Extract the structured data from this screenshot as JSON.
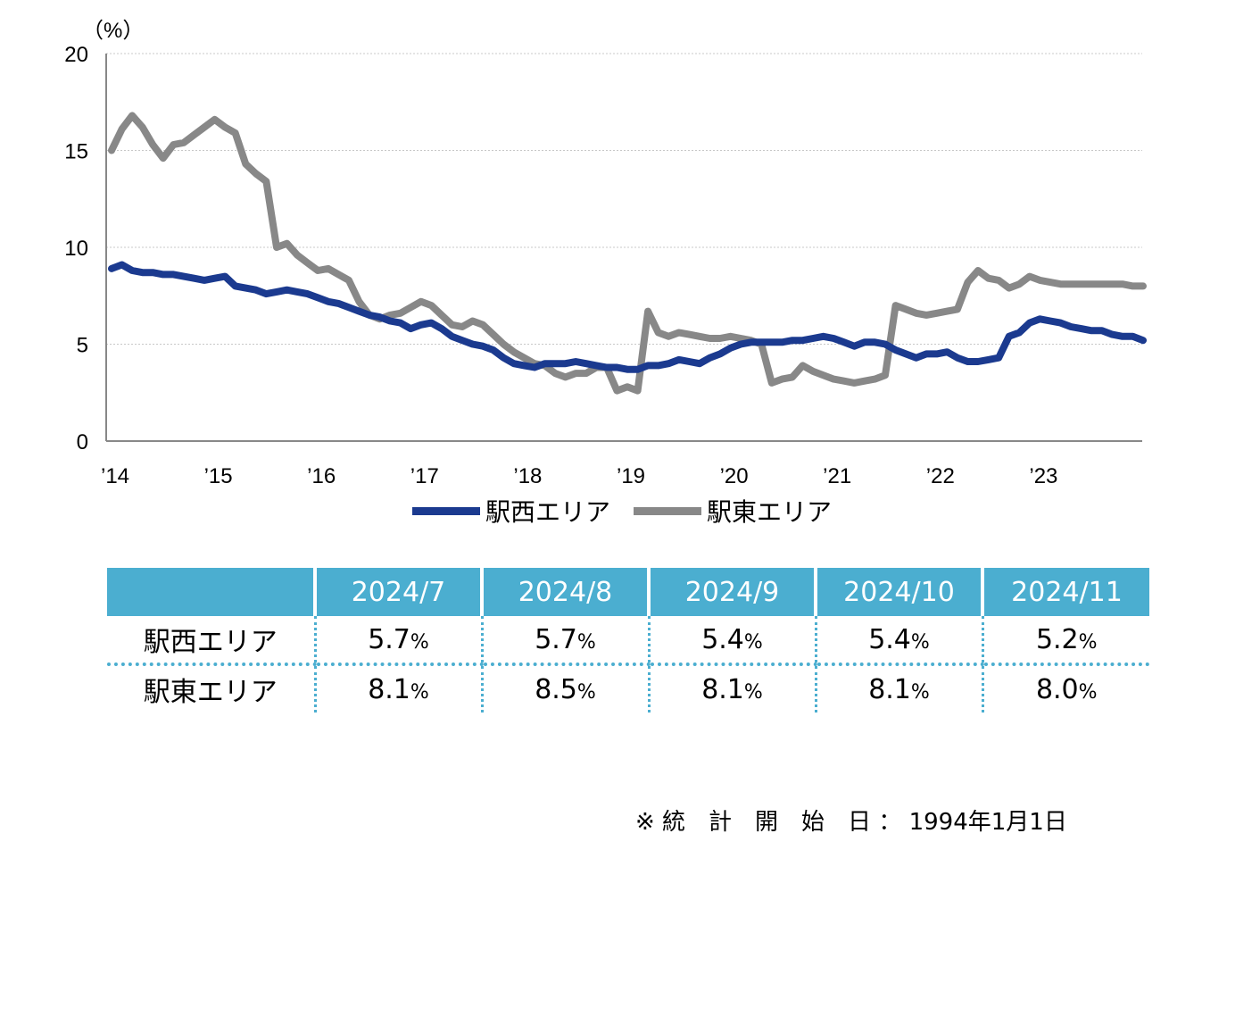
{
  "chart_data": {
    "type": "line",
    "unit_label": "（%）",
    "ylim": [
      0,
      20
    ],
    "yticks": [
      "0",
      "5",
      "10",
      "15",
      "20"
    ],
    "xlim": [
      2014.0,
      2024.0
    ],
    "xtick_labels": [
      "’14",
      "’15",
      "’16",
      "’17",
      "’18",
      "’19",
      "’20",
      "’21",
      "’22",
      "’23"
    ],
    "grid": "horizontal dotted",
    "legend_position": "bottom",
    "series": [
      {
        "name": "駅西エリア",
        "color": "#1B3A8F",
        "x": [
          2014.0,
          2014.1,
          2014.2,
          2014.3,
          2014.4,
          2014.5,
          2014.6,
          2014.7,
          2014.8,
          2014.9,
          2015.0,
          2015.1,
          2015.2,
          2015.3,
          2015.4,
          2015.5,
          2015.6,
          2015.7,
          2015.8,
          2015.9,
          2016.0,
          2016.1,
          2016.2,
          2016.3,
          2016.4,
          2016.5,
          2016.6,
          2016.7,
          2016.8,
          2016.9,
          2017.0,
          2017.1,
          2017.2,
          2017.3,
          2017.4,
          2017.5,
          2017.6,
          2017.7,
          2017.8,
          2017.9,
          2018.0,
          2018.1,
          2018.2,
          2018.3,
          2018.4,
          2018.5,
          2018.6,
          2018.7,
          2018.8,
          2018.9,
          2019.0,
          2019.1,
          2019.2,
          2019.3,
          2019.4,
          2019.5,
          2019.6,
          2019.7,
          2019.8,
          2019.9,
          2020.0,
          2020.1,
          2020.2,
          2020.3,
          2020.4,
          2020.5,
          2020.6,
          2020.7,
          2020.8,
          2020.9,
          2021.0,
          2021.1,
          2021.2,
          2021.3,
          2021.4,
          2021.5,
          2021.6,
          2021.7,
          2021.8,
          2021.9,
          2022.0,
          2022.1,
          2022.2,
          2022.3,
          2022.4,
          2022.5,
          2022.6,
          2022.7,
          2022.8,
          2022.9,
          2023.0,
          2023.1,
          2023.2,
          2023.3,
          2023.4,
          2023.5,
          2023.6,
          2023.7,
          2023.8,
          2023.9,
          2024.0
        ],
        "values": [
          8.9,
          9.1,
          8.8,
          8.7,
          8.7,
          8.6,
          8.6,
          8.5,
          8.4,
          8.3,
          8.4,
          8.5,
          8.0,
          7.9,
          7.8,
          7.6,
          7.7,
          7.8,
          7.7,
          7.6,
          7.4,
          7.2,
          7.1,
          6.9,
          6.7,
          6.5,
          6.4,
          6.2,
          6.1,
          5.8,
          6.0,
          6.1,
          5.8,
          5.4,
          5.2,
          5.0,
          4.9,
          4.7,
          4.3,
          4.0,
          3.9,
          3.8,
          4.0,
          4.0,
          4.0,
          4.1,
          4.0,
          3.9,
          3.8,
          3.8,
          3.7,
          3.7,
          3.9,
          3.9,
          4.0,
          4.2,
          4.1,
          4.0,
          4.3,
          4.5,
          4.8,
          5.0,
          5.1,
          5.1,
          5.1,
          5.1,
          5.2,
          5.2,
          5.3,
          5.4,
          5.3,
          5.1,
          4.9,
          5.1,
          5.1,
          5.0,
          4.7,
          4.5,
          4.3,
          4.5,
          4.5,
          4.6,
          4.3,
          4.1,
          4.1,
          4.2,
          4.3,
          5.4,
          5.6,
          6.1,
          6.3,
          6.2,
          6.1,
          5.9,
          5.8,
          5.7,
          5.7,
          5.5,
          5.4,
          5.4,
          5.2
        ]
      },
      {
        "name": "駅東エリア",
        "color": "#888888",
        "x": [
          2014.0,
          2014.1,
          2014.2,
          2014.3,
          2014.4,
          2014.5,
          2014.6,
          2014.7,
          2014.8,
          2014.9,
          2015.0,
          2015.1,
          2015.2,
          2015.3,
          2015.4,
          2015.5,
          2015.6,
          2015.7,
          2015.8,
          2015.9,
          2016.0,
          2016.1,
          2016.2,
          2016.3,
          2016.4,
          2016.5,
          2016.6,
          2016.7,
          2016.8,
          2016.9,
          2017.0,
          2017.1,
          2017.2,
          2017.3,
          2017.4,
          2017.5,
          2017.6,
          2017.7,
          2017.8,
          2017.9,
          2018.0,
          2018.1,
          2018.2,
          2018.3,
          2018.4,
          2018.5,
          2018.6,
          2018.7,
          2018.8,
          2018.9,
          2019.0,
          2019.1,
          2019.2,
          2019.3,
          2019.4,
          2019.5,
          2019.6,
          2019.7,
          2019.8,
          2019.9,
          2020.0,
          2020.1,
          2020.2,
          2020.3,
          2020.4,
          2020.5,
          2020.6,
          2020.7,
          2020.8,
          2020.9,
          2021.0,
          2021.1,
          2021.2,
          2021.3,
          2021.4,
          2021.5,
          2021.6,
          2021.7,
          2021.8,
          2021.9,
          2022.0,
          2022.1,
          2022.2,
          2022.3,
          2022.4,
          2022.5,
          2022.6,
          2022.7,
          2022.8,
          2022.9,
          2023.0,
          2023.1,
          2023.2,
          2023.3,
          2023.4,
          2023.5,
          2023.6,
          2023.7,
          2023.8,
          2023.9,
          2024.0
        ],
        "values": [
          15.0,
          16.1,
          16.8,
          16.2,
          15.3,
          14.6,
          15.3,
          15.4,
          15.8,
          16.2,
          16.6,
          16.2,
          15.9,
          14.3,
          13.8,
          13.4,
          10.0,
          10.2,
          9.6,
          9.2,
          8.8,
          8.9,
          8.6,
          8.3,
          7.2,
          6.5,
          6.3,
          6.5,
          6.6,
          6.9,
          7.2,
          7.0,
          6.5,
          6.0,
          5.9,
          6.2,
          6.0,
          5.5,
          5.0,
          4.6,
          4.3,
          4.0,
          3.9,
          3.5,
          3.3,
          3.5,
          3.5,
          3.8,
          3.8,
          2.6,
          2.8,
          2.6,
          6.7,
          5.6,
          5.4,
          5.6,
          5.5,
          5.4,
          5.3,
          5.3,
          5.4,
          5.3,
          5.2,
          5.0,
          3.0,
          3.2,
          3.3,
          3.9,
          3.6,
          3.4,
          3.2,
          3.1,
          3.0,
          3.1,
          3.2,
          3.4,
          7.0,
          6.8,
          6.6,
          6.5,
          6.6,
          6.7,
          6.8,
          8.2,
          8.8,
          8.4,
          8.3,
          7.9,
          8.1,
          8.5,
          8.3,
          8.2,
          8.1,
          8.1,
          8.1,
          8.1,
          8.1,
          8.1,
          8.1,
          8.0,
          8.0
        ]
      }
    ]
  },
  "table": {
    "headers": [
      "",
      "2024/7",
      "2024/8",
      "2024/9",
      "2024/10",
      "2024/11"
    ],
    "rows": [
      {
        "label": "駅西エリア",
        "values": [
          "5.7",
          "5.7",
          "5.4",
          "5.4",
          "5.2"
        ]
      },
      {
        "label": "駅東エリア",
        "values": [
          "8.1",
          "8.5",
          "8.1",
          "8.1",
          "8.0"
        ]
      }
    ],
    "unit": "%"
  },
  "note": "※ 統　計　開　始　日 ： 1994年1月1日"
}
